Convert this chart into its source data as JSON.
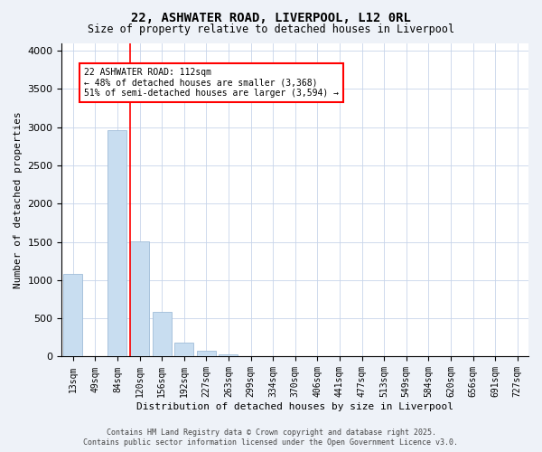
{
  "title": "22, ASHWATER ROAD, LIVERPOOL, L12 0RL",
  "subtitle": "Size of property relative to detached houses in Liverpool",
  "xlabel": "Distribution of detached houses by size in Liverpool",
  "ylabel": "Number of detached properties",
  "categories": [
    "13sqm",
    "49sqm",
    "84sqm",
    "120sqm",
    "156sqm",
    "192sqm",
    "227sqm",
    "263sqm",
    "299sqm",
    "334sqm",
    "370sqm",
    "406sqm",
    "441sqm",
    "477sqm",
    "513sqm",
    "549sqm",
    "584sqm",
    "620sqm",
    "656sqm",
    "691sqm",
    "727sqm"
  ],
  "values": [
    1080,
    0,
    2960,
    1510,
    590,
    185,
    80,
    30,
    10,
    5,
    2,
    1,
    0,
    0,
    0,
    0,
    0,
    0,
    0,
    0,
    0
  ],
  "bar_color": "#c8ddf0",
  "bar_edgecolor": "#a0bcd8",
  "vline_color": "red",
  "vline_index": 3,
  "annotation_text": "22 ASHWATER ROAD: 112sqm\n← 48% of detached houses are smaller (3,368)\n51% of semi-detached houses are larger (3,594) →",
  "annotation_box_color": "red",
  "annotation_bg": "white",
  "ylim": [
    0,
    4100
  ],
  "yticks": [
    0,
    500,
    1000,
    1500,
    2000,
    2500,
    3000,
    3500,
    4000
  ],
  "footer1": "Contains HM Land Registry data © Crown copyright and database right 2025.",
  "footer2": "Contains public sector information licensed under the Open Government Licence v3.0.",
  "bg_color": "#eef2f8",
  "plot_bg": "#ffffff",
  "grid_color": "#c8d4ea",
  "title_fontsize": 10,
  "subtitle_fontsize": 8.5,
  "tick_fontsize": 7,
  "label_fontsize": 8,
  "annotation_fontsize": 7,
  "footer_fontsize": 6
}
